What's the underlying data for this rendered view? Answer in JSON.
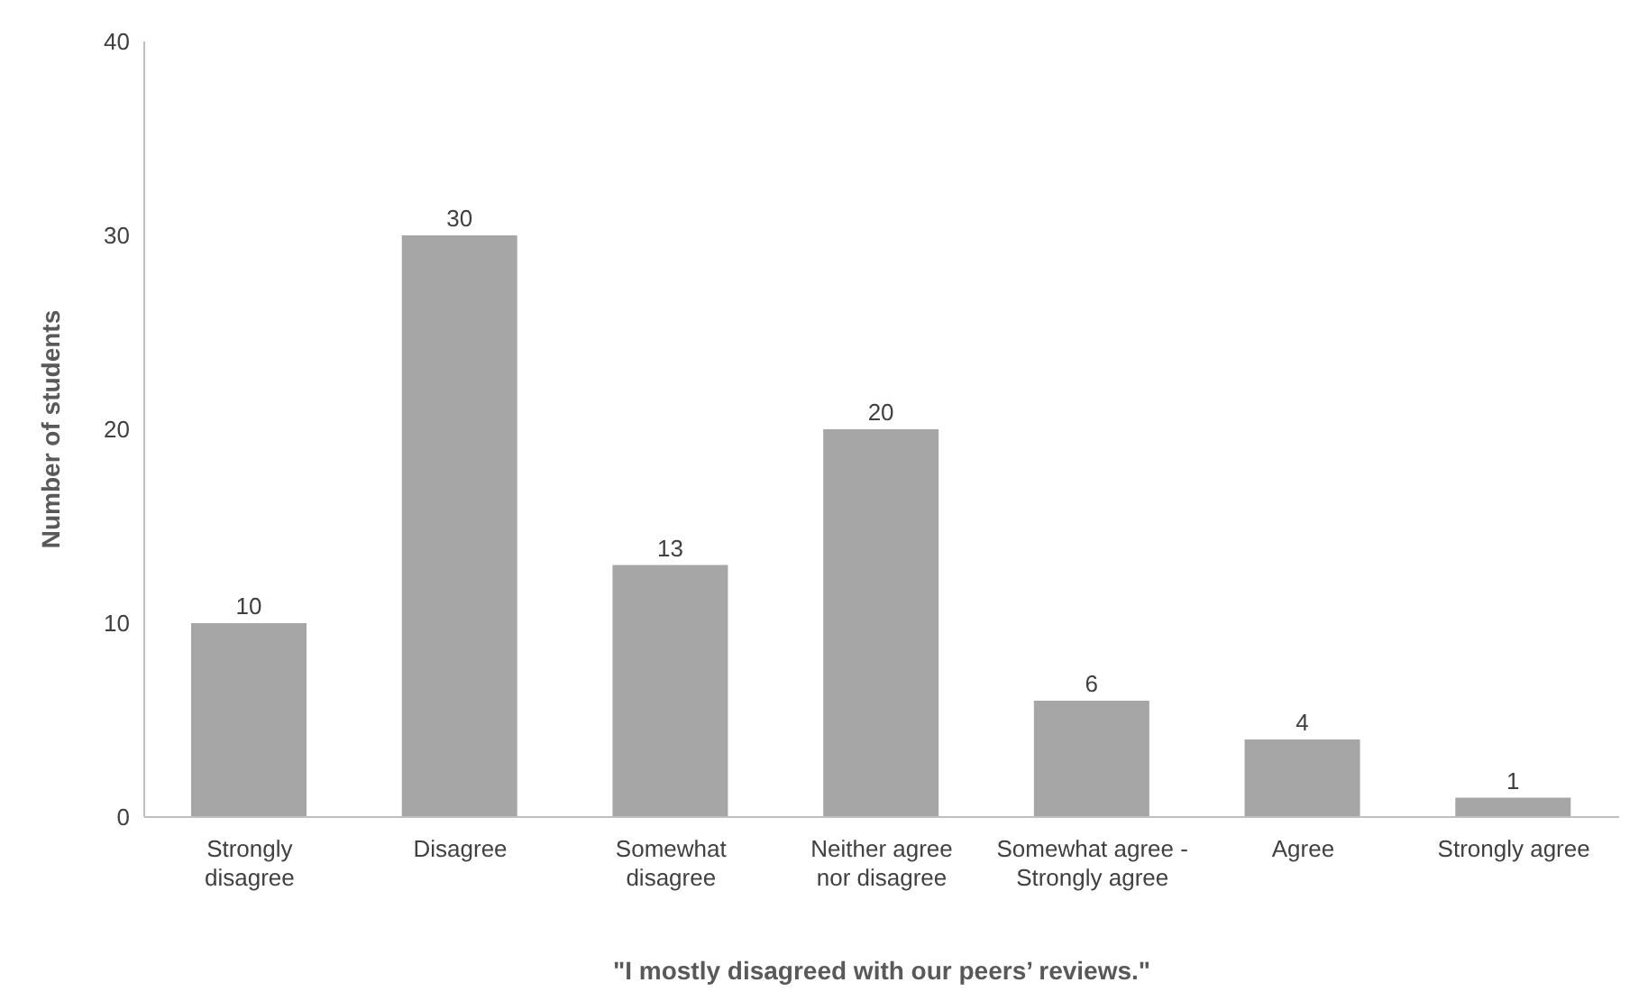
{
  "chart_data": {
    "type": "bar",
    "xlabel": "\"I mostly disagreed with our peers’ reviews.\"",
    "ylabel": "Number of students",
    "categories": [
      "Strongly disagree",
      "Disagree",
      "Somewhat disagree",
      "Neither agree nor disagree",
      "Somewhat agree - Strongly agree",
      "Agree",
      "Strongly agree"
    ],
    "values": [
      10,
      30,
      13,
      20,
      6,
      4,
      1
    ],
    "color": "#a6a6a6",
    "ylim": [
      0,
      40
    ],
    "yticks": [
      0,
      10,
      20,
      30,
      40
    ],
    "grid": false,
    "data_labels": true
  }
}
